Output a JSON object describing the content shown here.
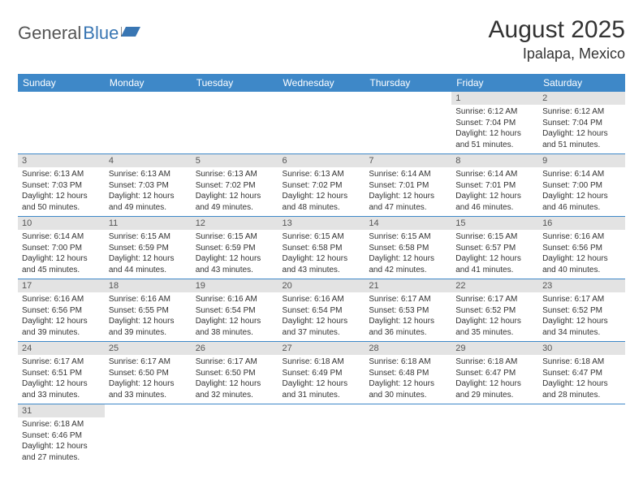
{
  "logo": {
    "part1": "General",
    "part2": "Blue"
  },
  "title": "August 2025",
  "location": "Ipalapa, Mexico",
  "colors": {
    "header_bg": "#3e88c8",
    "header_text": "#ffffff",
    "daynum_bg": "#e3e3e3",
    "row_border": "#3e88c8",
    "logo_blue": "#3976b3",
    "logo_gray": "#555555"
  },
  "day_headers": [
    "Sunday",
    "Monday",
    "Tuesday",
    "Wednesday",
    "Thursday",
    "Friday",
    "Saturday"
  ],
  "weeks": [
    [
      null,
      null,
      null,
      null,
      null,
      {
        "n": "1",
        "sr": "Sunrise: 6:12 AM",
        "ss": "Sunset: 7:04 PM",
        "d1": "Daylight: 12 hours",
        "d2": "and 51 minutes."
      },
      {
        "n": "2",
        "sr": "Sunrise: 6:12 AM",
        "ss": "Sunset: 7:04 PM",
        "d1": "Daylight: 12 hours",
        "d2": "and 51 minutes."
      }
    ],
    [
      {
        "n": "3",
        "sr": "Sunrise: 6:13 AM",
        "ss": "Sunset: 7:03 PM",
        "d1": "Daylight: 12 hours",
        "d2": "and 50 minutes."
      },
      {
        "n": "4",
        "sr": "Sunrise: 6:13 AM",
        "ss": "Sunset: 7:03 PM",
        "d1": "Daylight: 12 hours",
        "d2": "and 49 minutes."
      },
      {
        "n": "5",
        "sr": "Sunrise: 6:13 AM",
        "ss": "Sunset: 7:02 PM",
        "d1": "Daylight: 12 hours",
        "d2": "and 49 minutes."
      },
      {
        "n": "6",
        "sr": "Sunrise: 6:13 AM",
        "ss": "Sunset: 7:02 PM",
        "d1": "Daylight: 12 hours",
        "d2": "and 48 minutes."
      },
      {
        "n": "7",
        "sr": "Sunrise: 6:14 AM",
        "ss": "Sunset: 7:01 PM",
        "d1": "Daylight: 12 hours",
        "d2": "and 47 minutes."
      },
      {
        "n": "8",
        "sr": "Sunrise: 6:14 AM",
        "ss": "Sunset: 7:01 PM",
        "d1": "Daylight: 12 hours",
        "d2": "and 46 minutes."
      },
      {
        "n": "9",
        "sr": "Sunrise: 6:14 AM",
        "ss": "Sunset: 7:00 PM",
        "d1": "Daylight: 12 hours",
        "d2": "and 46 minutes."
      }
    ],
    [
      {
        "n": "10",
        "sr": "Sunrise: 6:14 AM",
        "ss": "Sunset: 7:00 PM",
        "d1": "Daylight: 12 hours",
        "d2": "and 45 minutes."
      },
      {
        "n": "11",
        "sr": "Sunrise: 6:15 AM",
        "ss": "Sunset: 6:59 PM",
        "d1": "Daylight: 12 hours",
        "d2": "and 44 minutes."
      },
      {
        "n": "12",
        "sr": "Sunrise: 6:15 AM",
        "ss": "Sunset: 6:59 PM",
        "d1": "Daylight: 12 hours",
        "d2": "and 43 minutes."
      },
      {
        "n": "13",
        "sr": "Sunrise: 6:15 AM",
        "ss": "Sunset: 6:58 PM",
        "d1": "Daylight: 12 hours",
        "d2": "and 43 minutes."
      },
      {
        "n": "14",
        "sr": "Sunrise: 6:15 AM",
        "ss": "Sunset: 6:58 PM",
        "d1": "Daylight: 12 hours",
        "d2": "and 42 minutes."
      },
      {
        "n": "15",
        "sr": "Sunrise: 6:15 AM",
        "ss": "Sunset: 6:57 PM",
        "d1": "Daylight: 12 hours",
        "d2": "and 41 minutes."
      },
      {
        "n": "16",
        "sr": "Sunrise: 6:16 AM",
        "ss": "Sunset: 6:56 PM",
        "d1": "Daylight: 12 hours",
        "d2": "and 40 minutes."
      }
    ],
    [
      {
        "n": "17",
        "sr": "Sunrise: 6:16 AM",
        "ss": "Sunset: 6:56 PM",
        "d1": "Daylight: 12 hours",
        "d2": "and 39 minutes."
      },
      {
        "n": "18",
        "sr": "Sunrise: 6:16 AM",
        "ss": "Sunset: 6:55 PM",
        "d1": "Daylight: 12 hours",
        "d2": "and 39 minutes."
      },
      {
        "n": "19",
        "sr": "Sunrise: 6:16 AM",
        "ss": "Sunset: 6:54 PM",
        "d1": "Daylight: 12 hours",
        "d2": "and 38 minutes."
      },
      {
        "n": "20",
        "sr": "Sunrise: 6:16 AM",
        "ss": "Sunset: 6:54 PM",
        "d1": "Daylight: 12 hours",
        "d2": "and 37 minutes."
      },
      {
        "n": "21",
        "sr": "Sunrise: 6:17 AM",
        "ss": "Sunset: 6:53 PM",
        "d1": "Daylight: 12 hours",
        "d2": "and 36 minutes."
      },
      {
        "n": "22",
        "sr": "Sunrise: 6:17 AM",
        "ss": "Sunset: 6:52 PM",
        "d1": "Daylight: 12 hours",
        "d2": "and 35 minutes."
      },
      {
        "n": "23",
        "sr": "Sunrise: 6:17 AM",
        "ss": "Sunset: 6:52 PM",
        "d1": "Daylight: 12 hours",
        "d2": "and 34 minutes."
      }
    ],
    [
      {
        "n": "24",
        "sr": "Sunrise: 6:17 AM",
        "ss": "Sunset: 6:51 PM",
        "d1": "Daylight: 12 hours",
        "d2": "and 33 minutes."
      },
      {
        "n": "25",
        "sr": "Sunrise: 6:17 AM",
        "ss": "Sunset: 6:50 PM",
        "d1": "Daylight: 12 hours",
        "d2": "and 33 minutes."
      },
      {
        "n": "26",
        "sr": "Sunrise: 6:17 AM",
        "ss": "Sunset: 6:50 PM",
        "d1": "Daylight: 12 hours",
        "d2": "and 32 minutes."
      },
      {
        "n": "27",
        "sr": "Sunrise: 6:18 AM",
        "ss": "Sunset: 6:49 PM",
        "d1": "Daylight: 12 hours",
        "d2": "and 31 minutes."
      },
      {
        "n": "28",
        "sr": "Sunrise: 6:18 AM",
        "ss": "Sunset: 6:48 PM",
        "d1": "Daylight: 12 hours",
        "d2": "and 30 minutes."
      },
      {
        "n": "29",
        "sr": "Sunrise: 6:18 AM",
        "ss": "Sunset: 6:47 PM",
        "d1": "Daylight: 12 hours",
        "d2": "and 29 minutes."
      },
      {
        "n": "30",
        "sr": "Sunrise: 6:18 AM",
        "ss": "Sunset: 6:47 PM",
        "d1": "Daylight: 12 hours",
        "d2": "and 28 minutes."
      }
    ],
    [
      {
        "n": "31",
        "sr": "Sunrise: 6:18 AM",
        "ss": "Sunset: 6:46 PM",
        "d1": "Daylight: 12 hours",
        "d2": "and 27 minutes."
      },
      null,
      null,
      null,
      null,
      null,
      null
    ]
  ]
}
